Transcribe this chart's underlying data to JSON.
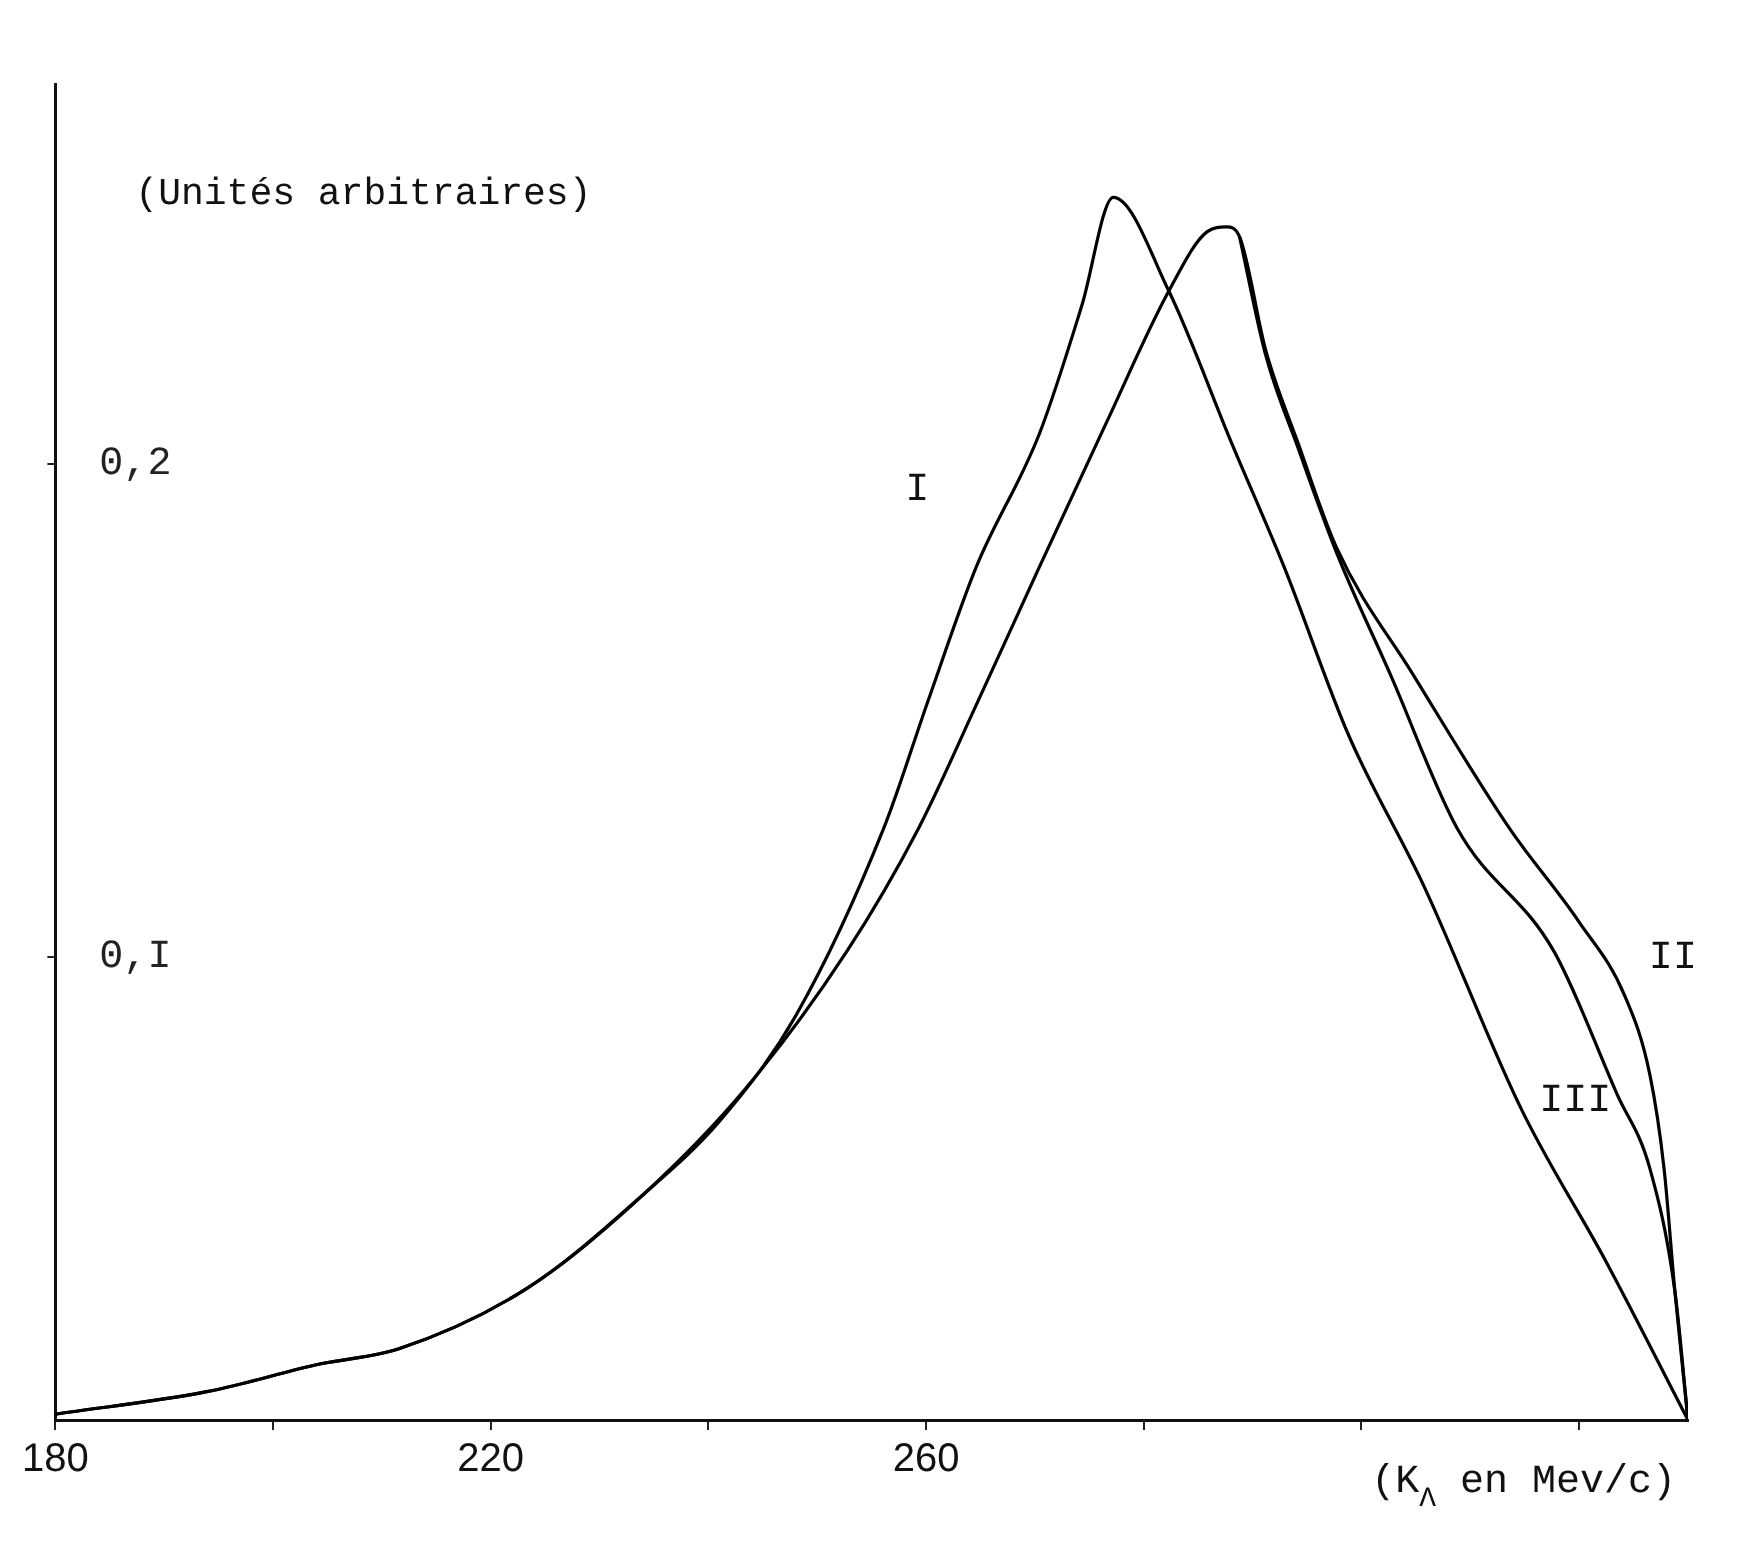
{
  "chart_data": {
    "type": "line",
    "xlabel": "(K$_{Λ}$ en Mev/c)",
    "ylabel": "(Unités arbitraires)",
    "xlim": [
      180,
      330
    ],
    "ylim": [
      0.006,
      0.277
    ],
    "xticks": [
      180,
      {
        "value": 200,
        "label": null
      },
      220,
      {
        "value": 240,
        "label": null
      },
      260,
      {
        "value": 280,
        "label": null
      },
      {
        "value": 300,
        "label": null
      },
      {
        "value": 320,
        "label": null
      }
    ],
    "yticks": [
      {
        "value": 0.1,
        "label": "0,I"
      },
      {
        "value": 0.2,
        "label": "0,2"
      }
    ],
    "grid": false,
    "legend": false,
    "marker": "none",
    "line_style": "solid",
    "series": [
      {
        "name": "I",
        "color": "#000000",
        "x": [
          180,
          193.8,
          204.4,
          211.5,
          223.4,
          234.0,
          241.1,
          248.1,
          256.1,
          260.2,
          264.6,
          270.4,
          274.3,
          277.2,
          282.3,
          288.1,
          292.9,
          298.8,
          305.8,
          314.7,
          322.5,
          330
        ],
        "values": [
          0.0072,
          0.0117,
          0.0174,
          0.0204,
          0.0328,
          0.0517,
          0.0668,
          0.0883,
          0.126,
          0.152,
          0.179,
          0.206,
          0.232,
          0.254,
          0.235,
          0.204,
          0.179,
          0.145,
          0.114,
          0.069,
          0.038,
          0.006
        ]
      },
      {
        "name": "II",
        "color": "#000000",
        "x": [
          180,
          193.8,
          204.4,
          211.5,
          223.4,
          234.0,
          243.4,
          252.7,
          259.3,
          264.6,
          270.4,
          276.5,
          282.3,
          285.8,
          287.6,
          288.8,
          291.2,
          294.2,
          297.7,
          304.8,
          313.6,
          320.0,
          324.2,
          326.5,
          327.8,
          328.8,
          330
        ],
        "values": [
          0.0072,
          0.0117,
          0.0174,
          0.0204,
          0.0328,
          0.0517,
          0.0732,
          0.101,
          0.126,
          0.151,
          0.179,
          0.208,
          0.235,
          0.247,
          0.248,
          0.246,
          0.223,
          0.204,
          0.183,
          0.157,
          0.126,
          0.107,
          0.092,
          0.076,
          0.057,
          0.032,
          0.006
        ]
      },
      {
        "name": "III",
        "color": "#000000",
        "x": [
          288.8,
          291.2,
          294.2,
          297.7,
          302.7,
          308.8,
          317.7,
          323.5,
          326.5,
          328.8,
          330
        ],
        "values": [
          0.246,
          0.222,
          0.203,
          0.182,
          0.157,
          0.126,
          0.101,
          0.072,
          0.057,
          0.032,
          0.006
        ]
      }
    ]
  }
}
